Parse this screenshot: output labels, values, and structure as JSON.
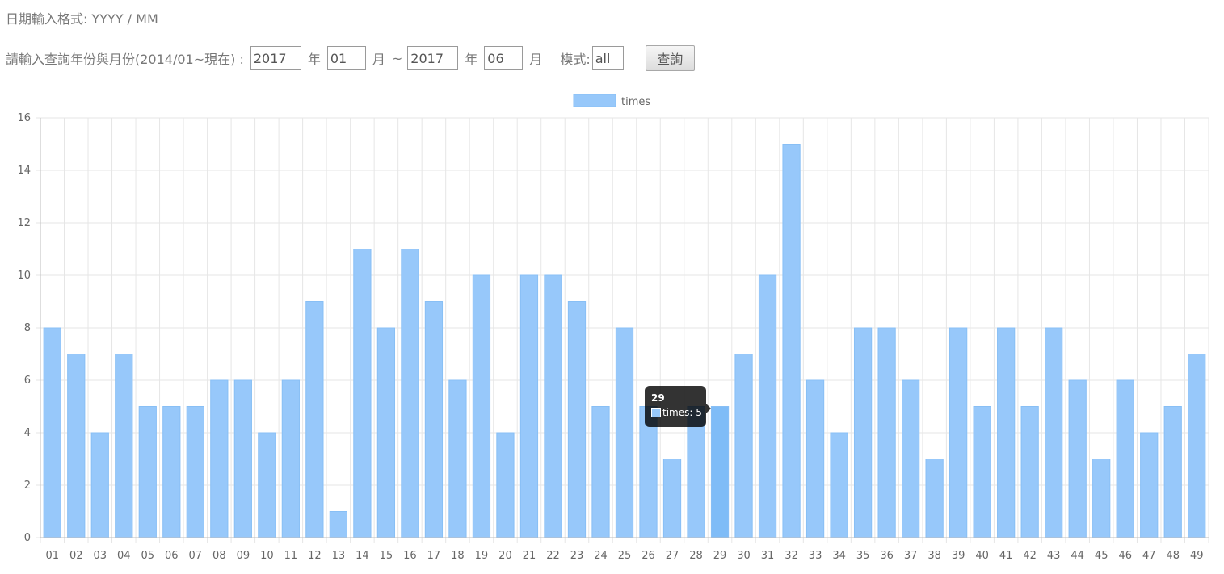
{
  "header": {
    "format_hint": "日期輸入格式: YYYY / MM"
  },
  "query": {
    "prompt_label": "請輸入查詢年份與月份(2014/01~現在) :",
    "start_year": "2017",
    "year_unit": "年",
    "start_month": "01",
    "month_unit": "月",
    "range_sep": "~",
    "end_year": "2017",
    "end_month": "06",
    "mode_label": "模式:",
    "mode_value": "all",
    "submit_label": "查詢"
  },
  "colors": {
    "bar_fill": "#97c8fa",
    "bar_stroke": "#88bff5",
    "bar_hover": "#7fbcf7",
    "grid": "#e6e6e6",
    "axis_text": "#666666"
  },
  "tooltip": {
    "title": "29",
    "body": "times: 5"
  },
  "chart_data": {
    "type": "bar",
    "legend": {
      "label": "times",
      "position": "top"
    },
    "categories": [
      "01",
      "02",
      "03",
      "04",
      "05",
      "06",
      "07",
      "08",
      "09",
      "10",
      "11",
      "12",
      "13",
      "14",
      "15",
      "16",
      "17",
      "18",
      "19",
      "20",
      "21",
      "22",
      "23",
      "24",
      "25",
      "26",
      "27",
      "28",
      "29",
      "30",
      "31",
      "32",
      "33",
      "34",
      "35",
      "36",
      "37",
      "38",
      "39",
      "40",
      "41",
      "42",
      "43",
      "44",
      "45",
      "46",
      "47",
      "48",
      "49"
    ],
    "series": [
      {
        "name": "times",
        "values": [
          8,
          7,
          4,
          7,
          5,
          5,
          5,
          6,
          6,
          4,
          6,
          9,
          1,
          11,
          8,
          11,
          9,
          6,
          10,
          4,
          10,
          10,
          9,
          5,
          8,
          5,
          3,
          5,
          5,
          7,
          10,
          15,
          6,
          4,
          8,
          8,
          6,
          3,
          8,
          5,
          8,
          5,
          8,
          6,
          3,
          6,
          4,
          5,
          7
        ]
      }
    ],
    "ylim": [
      0,
      16
    ],
    "yticks": [
      0,
      2,
      4,
      6,
      8,
      10,
      12,
      14,
      16
    ],
    "grid": true,
    "highlighted_category": "29"
  }
}
